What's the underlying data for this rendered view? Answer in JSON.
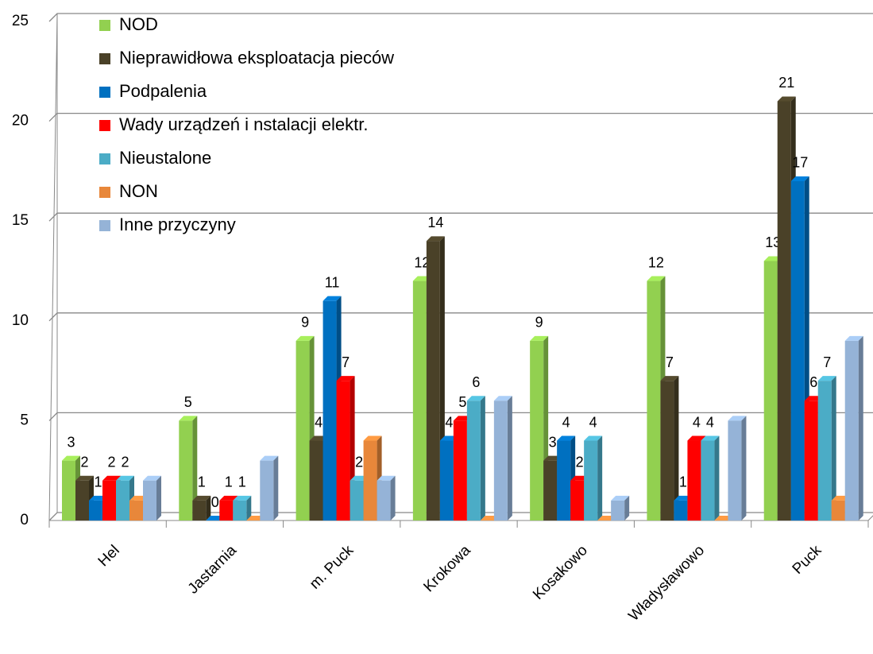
{
  "chart_data": {
    "type": "bar3d",
    "categories": [
      "Hel",
      "Jastarnia",
      "m. Puck",
      "Krokowa",
      "Kosakowo",
      "Władysławowo",
      "Puck"
    ],
    "series": [
      {
        "name": "NOD",
        "color": "#92d050",
        "labels": true,
        "values": [
          3,
          5,
          9,
          12,
          9,
          12,
          13
        ]
      },
      {
        "name": "Nieprawidłowa eksploatacja pieców",
        "color": "#4a4128",
        "labels": true,
        "values": [
          2,
          1,
          4,
          14,
          3,
          7,
          21
        ]
      },
      {
        "name": "Podpalenia",
        "color": "#0070c0",
        "labels": true,
        "values": [
          1,
          0,
          11,
          4,
          4,
          1,
          17
        ]
      },
      {
        "name": "Wady urządzeń i nstalacji elektr.",
        "color": "#ff0000",
        "labels": true,
        "values": [
          2,
          1,
          7,
          5,
          2,
          4,
          6
        ]
      },
      {
        "name": "Nieustalone",
        "color": "#4bacc6",
        "labels": true,
        "values": [
          2,
          1,
          2,
          6,
          4,
          4,
          7
        ]
      },
      {
        "name": "NON",
        "color": "#e8873a",
        "labels": false,
        "values": [
          1,
          0,
          4,
          0,
          0,
          0,
          1
        ]
      },
      {
        "name": "Inne przyczyny",
        "color": "#95b3d7",
        "labels": false,
        "values": [
          2,
          3,
          2,
          6,
          1,
          5,
          9
        ]
      }
    ],
    "ylim": [
      0,
      25
    ],
    "yticks": [
      0,
      5,
      10,
      15,
      20,
      25
    ],
    "grid": true,
    "legend": "top-left"
  }
}
